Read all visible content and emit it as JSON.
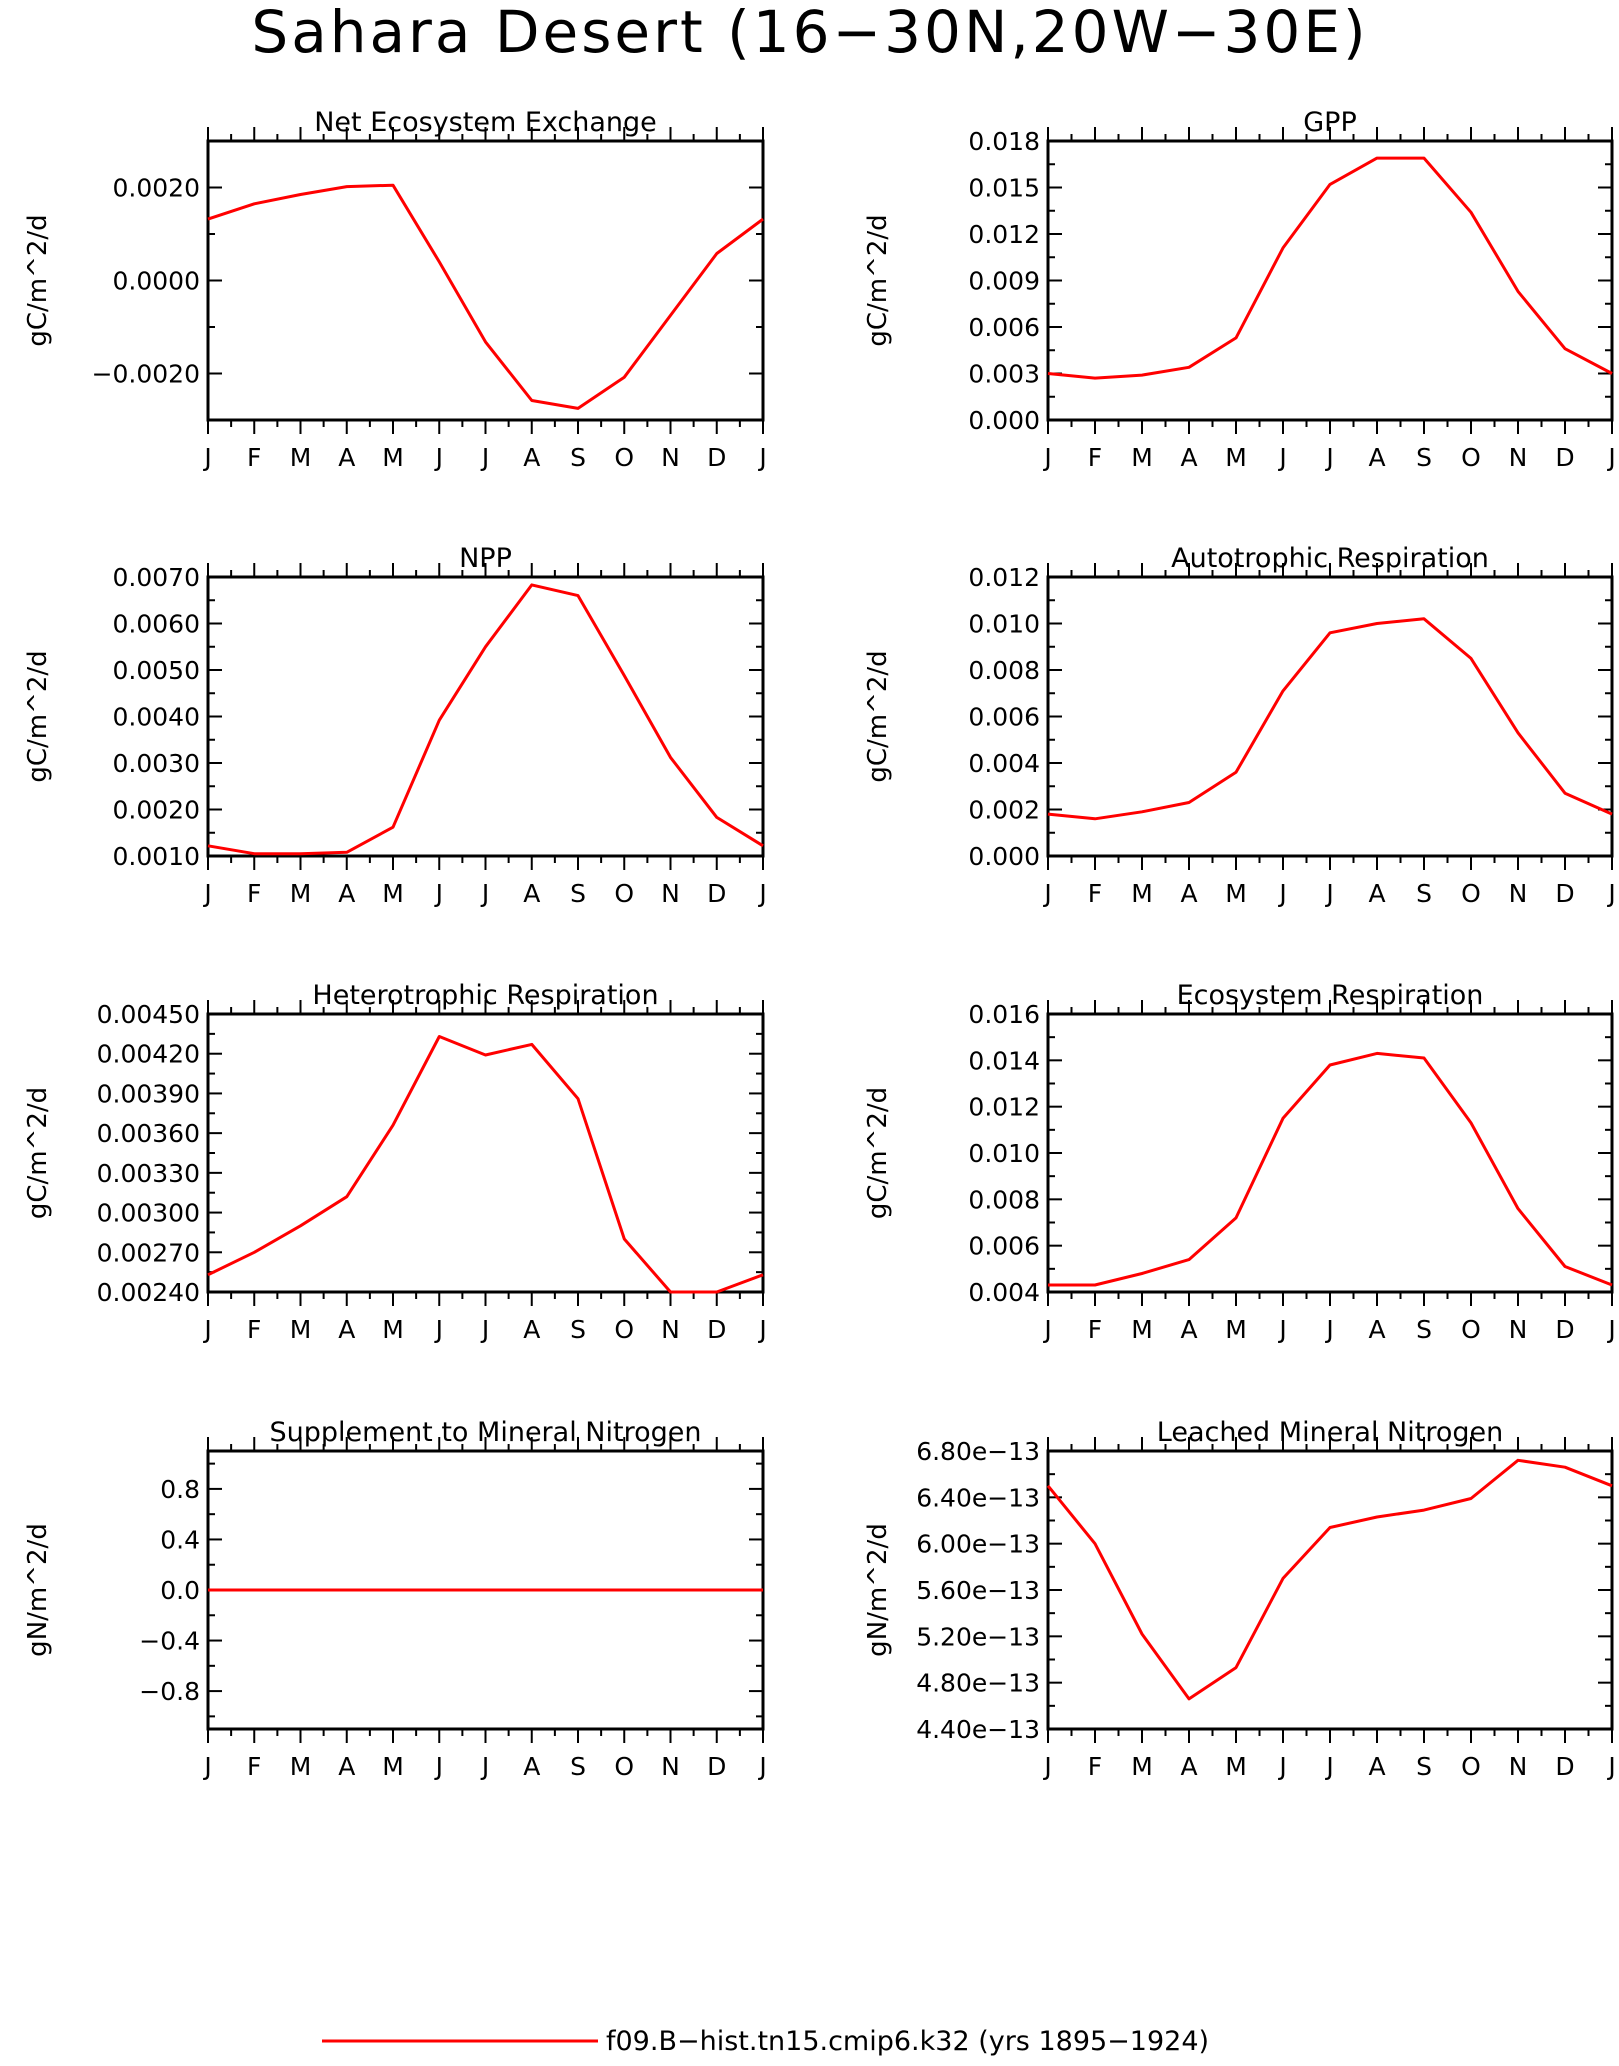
{
  "figure": {
    "title": "Sahara Desert (16−30N,20W−30E)",
    "legend": {
      "label": "f09.B−hist.tn15.cmip6.k32 (yrs 1895−1924)",
      "color": "#ff0000",
      "placement": "bottom-center"
    }
  },
  "chart_data": [
    {
      "type": "line",
      "title": "Net Ecosystem Exchange",
      "ylabel": "gC/m^2/d",
      "categories": [
        "J",
        "F",
        "M",
        "A",
        "M",
        "J",
        "J",
        "A",
        "S",
        "O",
        "N",
        "D",
        "J"
      ],
      "ylim": [
        -0.003,
        0.003
      ],
      "yticks": [
        -0.002,
        0.0,
        0.002
      ],
      "ytick_labels": [
        "−0.0020",
        "0.0000",
        "0.0020"
      ],
      "series": [
        {
          "color": "#ff0000",
          "values": [
            0.00132,
            0.00165,
            0.00185,
            0.00202,
            0.00205,
            0.0004,
            -0.00132,
            -0.00258,
            -0.00275,
            -0.00208,
            -0.00075,
            0.00058,
            0.00132
          ]
        }
      ]
    },
    {
      "type": "line",
      "title": "GPP",
      "ylabel": "gC/m^2/d",
      "categories": [
        "J",
        "F",
        "M",
        "A",
        "M",
        "J",
        "J",
        "A",
        "S",
        "O",
        "N",
        "D",
        "J"
      ],
      "ylim": [
        0.0,
        0.018
      ],
      "yticks": [
        0.0,
        0.003,
        0.006,
        0.009,
        0.012,
        0.015,
        0.018
      ],
      "ytick_labels": [
        "0.000",
        "0.003",
        "0.006",
        "0.009",
        "0.012",
        "0.015",
        "0.018"
      ],
      "series": [
        {
          "color": "#ff0000",
          "values": [
            0.003,
            0.0027,
            0.0029,
            0.0034,
            0.0053,
            0.0111,
            0.0152,
            0.0169,
            0.0169,
            0.0134,
            0.0083,
            0.0046,
            0.003
          ]
        }
      ]
    },
    {
      "type": "line",
      "title": "NPP",
      "ylabel": "gC/m^2/d",
      "categories": [
        "J",
        "F",
        "M",
        "A",
        "M",
        "J",
        "J",
        "A",
        "S",
        "O",
        "N",
        "D",
        "J"
      ],
      "ylim": [
        0.001,
        0.007
      ],
      "yticks": [
        0.001,
        0.002,
        0.003,
        0.004,
        0.005,
        0.006,
        0.007
      ],
      "ytick_labels": [
        "0.0010",
        "0.0020",
        "0.0030",
        "0.0040",
        "0.0050",
        "0.0060",
        "0.0070"
      ],
      "series": [
        {
          "color": "#ff0000",
          "values": [
            0.00122,
            0.00105,
            0.00105,
            0.00108,
            0.00162,
            0.00392,
            0.0055,
            0.00683,
            0.0066,
            0.00488,
            0.00312,
            0.00183,
            0.00122
          ]
        }
      ]
    },
    {
      "type": "line",
      "title": "Autotrophic Respiration",
      "ylabel": "gC/m^2/d",
      "categories": [
        "J",
        "F",
        "M",
        "A",
        "M",
        "J",
        "J",
        "A",
        "S",
        "O",
        "N",
        "D",
        "J"
      ],
      "ylim": [
        0.0,
        0.012
      ],
      "yticks": [
        0.0,
        0.002,
        0.004,
        0.006,
        0.008,
        0.01,
        0.012
      ],
      "ytick_labels": [
        "0.000",
        "0.002",
        "0.004",
        "0.006",
        "0.008",
        "0.010",
        "0.012"
      ],
      "series": [
        {
          "color": "#ff0000",
          "values": [
            0.0018,
            0.0016,
            0.0019,
            0.0023,
            0.0036,
            0.0071,
            0.0096,
            0.01,
            0.0102,
            0.0085,
            0.0053,
            0.0027,
            0.0018
          ]
        }
      ]
    },
    {
      "type": "line",
      "title": "Heterotrophic Respiration",
      "ylabel": "gC/m^2/d",
      "categories": [
        "J",
        "F",
        "M",
        "A",
        "M",
        "J",
        "J",
        "A",
        "S",
        "O",
        "N",
        "D",
        "J"
      ],
      "ylim": [
        0.0024,
        0.0045
      ],
      "yticks": [
        0.0024,
        0.0027,
        0.003,
        0.0033,
        0.0036,
        0.0039,
        0.0042,
        0.0045
      ],
      "ytick_labels": [
        "0.00240",
        "0.00270",
        "0.00300",
        "0.00330",
        "0.00360",
        "0.00390",
        "0.00420",
        "0.00450"
      ],
      "series": [
        {
          "color": "#ff0000",
          "values": [
            0.00253,
            0.0027,
            0.0029,
            0.00312,
            0.00366,
            0.00433,
            0.00419,
            0.00427,
            0.00386,
            0.0028,
            0.0024,
            0.0024,
            0.00253
          ]
        }
      ]
    },
    {
      "type": "line",
      "title": "Ecosystem Respiration",
      "ylabel": "gC/m^2/d",
      "categories": [
        "J",
        "F",
        "M",
        "A",
        "M",
        "J",
        "J",
        "A",
        "S",
        "O",
        "N",
        "D",
        "J"
      ],
      "ylim": [
        0.004,
        0.016
      ],
      "yticks": [
        0.004,
        0.006,
        0.008,
        0.01,
        0.012,
        0.014,
        0.016
      ],
      "ytick_labels": [
        "0.004",
        "0.006",
        "0.008",
        "0.010",
        "0.012",
        "0.014",
        "0.016"
      ],
      "series": [
        {
          "color": "#ff0000",
          "values": [
            0.0043,
            0.0043,
            0.0048,
            0.0054,
            0.0072,
            0.0115,
            0.0138,
            0.0143,
            0.0141,
            0.0113,
            0.0076,
            0.0051,
            0.0043
          ]
        }
      ]
    },
    {
      "type": "line",
      "title": "Supplement to Mineral Nitrogen",
      "ylabel": "gN/m^2/d",
      "categories": [
        "J",
        "F",
        "M",
        "A",
        "M",
        "J",
        "J",
        "A",
        "S",
        "O",
        "N",
        "D",
        "J"
      ],
      "ylim": [
        -1.1,
        1.1
      ],
      "yticks": [
        -0.8,
        -0.4,
        0.0,
        0.4,
        0.8
      ],
      "ytick_labels": [
        "−0.8",
        "−0.4",
        "0.0",
        "0.4",
        "0.8"
      ],
      "series": [
        {
          "color": "#ff0000",
          "values": [
            0,
            0,
            0,
            0,
            0,
            0,
            0,
            0,
            0,
            0,
            0,
            0,
            0
          ]
        }
      ]
    },
    {
      "type": "line",
      "title": "Leached Mineral Nitrogen",
      "ylabel": "gN/m^2/d",
      "categories": [
        "J",
        "F",
        "M",
        "A",
        "M",
        "J",
        "J",
        "A",
        "S",
        "O",
        "N",
        "D",
        "J"
      ],
      "ylim": [
        4.4e-13,
        6.8e-13
      ],
      "yticks": [
        4.4e-13,
        4.8e-13,
        5.2e-13,
        5.6e-13,
        6e-13,
        6.4e-13,
        6.8e-13
      ],
      "ytick_labels": [
        "4.40e−13",
        "4.80e−13",
        "5.20e−13",
        "5.60e−13",
        "6.00e−13",
        "6.40e−13",
        "6.80e−13"
      ],
      "series": [
        {
          "color": "#ff0000",
          "values": [
            6.5e-13,
            6e-13,
            5.22e-13,
            4.66e-13,
            4.93e-13,
            5.7e-13,
            6.14e-13,
            6.23e-13,
            6.29e-13,
            6.39e-13,
            6.72e-13,
            6.66e-13,
            6.5e-13
          ]
        }
      ]
    }
  ]
}
